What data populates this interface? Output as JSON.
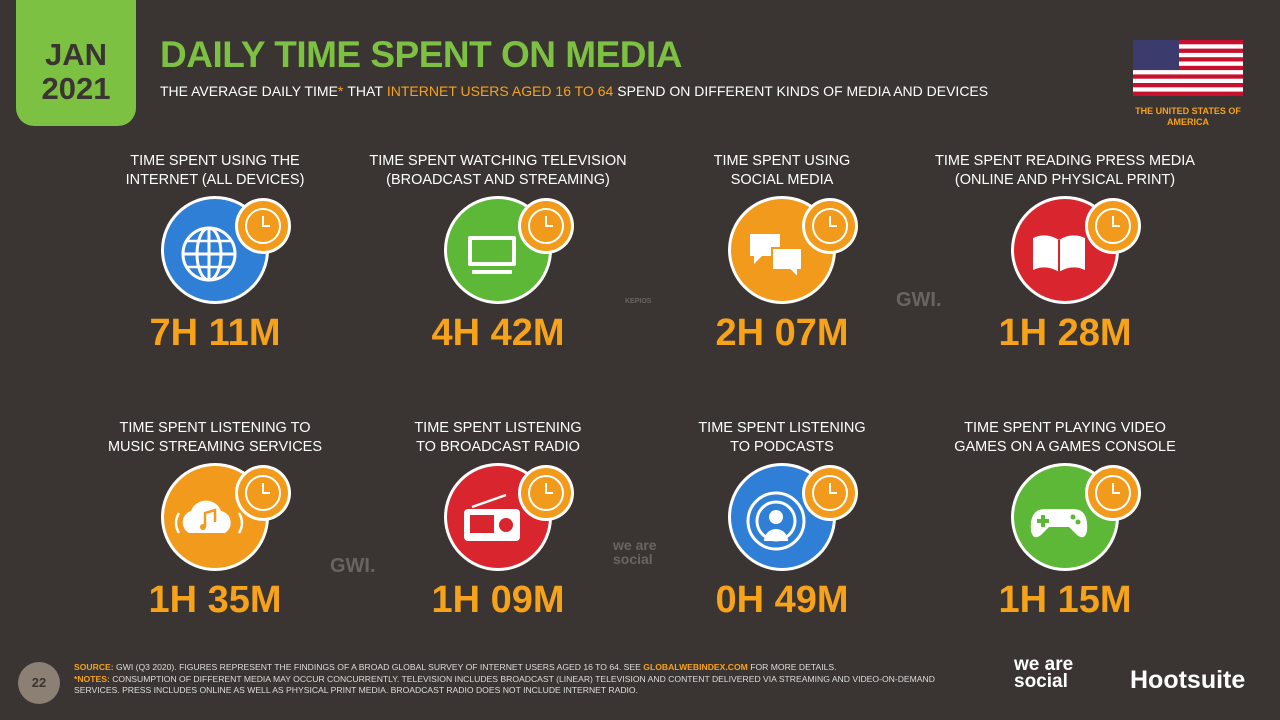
{
  "badge": {
    "month": "JAN",
    "year": "2021"
  },
  "header": {
    "title": "DAILY TIME SPENT ON MEDIA",
    "subtitle": [
      "THE AVERAGE DAILY TIME",
      "*",
      "THAT",
      "INTERNET USERS AGED 16 TO 64",
      "SPEND ON DIFFERENT KINDS OF MEDIA AND DEVICES"
    ]
  },
  "country": "THE UNITED STATES OF AMERICA",
  "tiles": [
    {
      "label": [
        "TIME SPENT USING THE",
        "INTERNET (ALL DEVICES)"
      ],
      "value": "7H 11M"
    },
    {
      "label": [
        "TIME SPENT WATCHING TELEVISION",
        "(BROADCAST AND STREAMING)"
      ],
      "value": "4H 42M"
    },
    {
      "label": [
        "TIME SPENT USING",
        "SOCIAL MEDIA"
      ],
      "value": "2H 07M"
    },
    {
      "label": [
        "TIME SPENT READING PRESS MEDIA",
        "(ONLINE AND PHYSICAL PRINT)"
      ],
      "value": "1H 28M"
    },
    {
      "label": [
        "TIME SPENT LISTENING TO",
        "MUSIC STREAMING SERVICES"
      ],
      "value": "1H 35M"
    },
    {
      "label": [
        "TIME SPENT LISTENING",
        "TO BROADCAST RADIO"
      ],
      "value": "1H 09M"
    },
    {
      "label": [
        "TIME SPENT LISTENING",
        "TO PODCASTS"
      ],
      "value": "0H 49M"
    },
    {
      "label": [
        "TIME SPENT PLAYING VIDEO",
        "GAMES ON A GAMES CONSOLE"
      ],
      "value": "1H 15M"
    }
  ],
  "watermarks": [
    "GWI.",
    "KEPIOS",
    "GWI.",
    "we are social"
  ],
  "footer": {
    "page": "22",
    "source_label": "SOURCE:",
    "source_text": "GWI (Q3 2020). FIGURES REPRESENT THE FINDINGS OF A BROAD GLOBAL SURVEY OF INTERNET USERS AGED 16 TO 64. SEE",
    "source_link": "GLOBALWEBINDEX.COM",
    "source_end": "FOR MORE DETAILS.",
    "notes_label": "*NOTES:",
    "notes_text": "CONSUMPTION OF DIFFERENT MEDIA MAY OCCUR CONCURRENTLY. TELEVISION INCLUDES BROADCAST (LINEAR) TELEVISION AND CONTENT DELIVERED VIA STREAMING AND VIDEO-ON-DEMAND SERVICES. PRESS INCLUDES ONLINE AS WELL AS PHYSICAL PRINT MEDIA. BROADCAST RADIO DOES NOT INCLUDE INTERNET RADIO.",
    "brand_1": "we are social",
    "brand_2": "Hootsuite"
  }
}
